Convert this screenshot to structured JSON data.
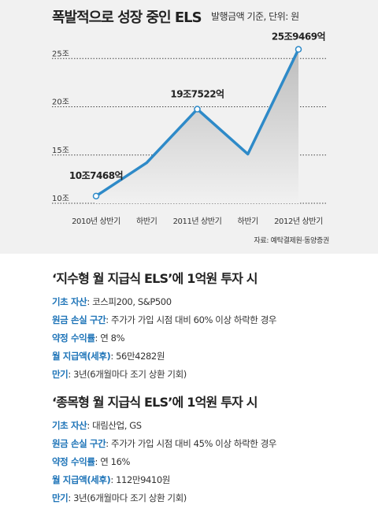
{
  "header": {
    "title": "폭발적으로 성장 중인 ELS",
    "subtitle": "발행금액 기준, 단위: 원",
    "source": "자료: 예탁결제원·동양증권"
  },
  "chart_data": {
    "type": "area",
    "categories": [
      "2010년 상반기",
      "하반기",
      "2011년 상반기",
      "하반기",
      "2012년 상반기"
    ],
    "values": [
      10.7468,
      14.2,
      19.7522,
      15.1,
      25.9469
    ],
    "ytick_labels": [
      "10조",
      "15조",
      "20조",
      "25조"
    ],
    "yticks": [
      10,
      15,
      20,
      25
    ],
    "ylim": [
      10,
      26
    ],
    "data_labels": [
      {
        "index": 0,
        "text": "10조7468억"
      },
      {
        "index": 2,
        "text": "19조7522억"
      },
      {
        "index": 4,
        "text": "25조9469억"
      }
    ],
    "colors": {
      "line": "#2e8ac8",
      "marker_fill": "#ffffff",
      "area_top": "#bdbdbd",
      "area_bottom": "#f1f1f1",
      "grid": "#444444"
    },
    "grid": "dotted-horizontal"
  },
  "sections": [
    {
      "title": "‘지수형 월 지급식 ELS’에 1억원 투자 시",
      "rows": [
        {
          "label": "기초 자산",
          "value": "코스피200, S&P500"
        },
        {
          "label": "원금 손실 구간",
          "value": "주가가 가입 시점 대비 60% 이상 하락한 경우"
        },
        {
          "label": "약정 수익률",
          "value": "연 8%"
        },
        {
          "label": "월 지급액(세후)",
          "value": "56만4282원"
        },
        {
          "label": "만기",
          "value": "3년(6개월마다 조기 상환 기회)"
        }
      ]
    },
    {
      "title": "‘종목형 월 지급식 ELS’에 1억원 투자 시",
      "rows": [
        {
          "label": "기초 자산",
          "value": "대림산업, GS"
        },
        {
          "label": "원금 손실 구간",
          "value": "주가가 가입 시점 대비 45% 이상 하락한 경우"
        },
        {
          "label": "약정 수익률",
          "value": "연 16%"
        },
        {
          "label": "월 지급액(세후)",
          "value": "112만9410원"
        },
        {
          "label": "만기",
          "value": "3년(6개월마다 조기 상환 기회)"
        }
      ]
    }
  ]
}
